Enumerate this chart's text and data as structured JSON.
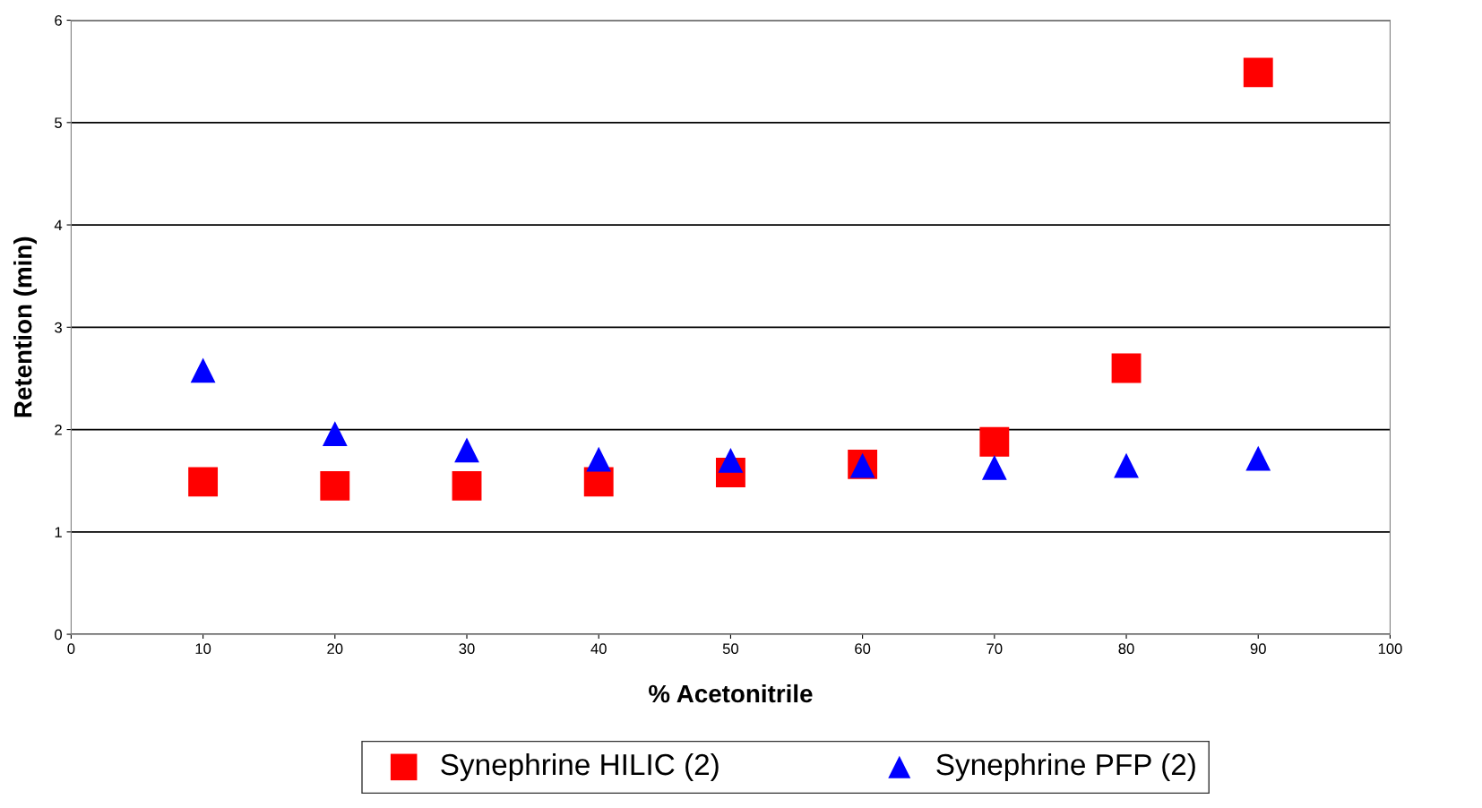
{
  "chart_data": {
    "type": "scatter",
    "xlabel": "% Acetonitrile",
    "ylabel": "Retention (min)",
    "x": [
      10,
      20,
      30,
      40,
      50,
      60,
      70,
      80,
      90
    ],
    "series": [
      {
        "name": "Synephrine HILIC (2)",
        "color": "#ff0000",
        "marker": "square",
        "values": [
          1.49,
          1.45,
          1.45,
          1.49,
          1.58,
          1.66,
          1.88,
          2.6,
          5.49
        ]
      },
      {
        "name": "Synephrine PFP (2)",
        "color": "#0000ff",
        "marker": "triangle",
        "values": [
          2.58,
          1.96,
          1.8,
          1.71,
          1.7,
          1.65,
          1.63,
          1.65,
          1.72
        ]
      }
    ],
    "xlim": [
      0,
      100
    ],
    "xticks": [
      0,
      10,
      20,
      30,
      40,
      50,
      60,
      70,
      80,
      90,
      100
    ],
    "ylim": [
      0,
      6
    ],
    "yticks": [
      0,
      1,
      2,
      3,
      4,
      5,
      6
    ],
    "grid": "y",
    "legend": "bottom"
  }
}
